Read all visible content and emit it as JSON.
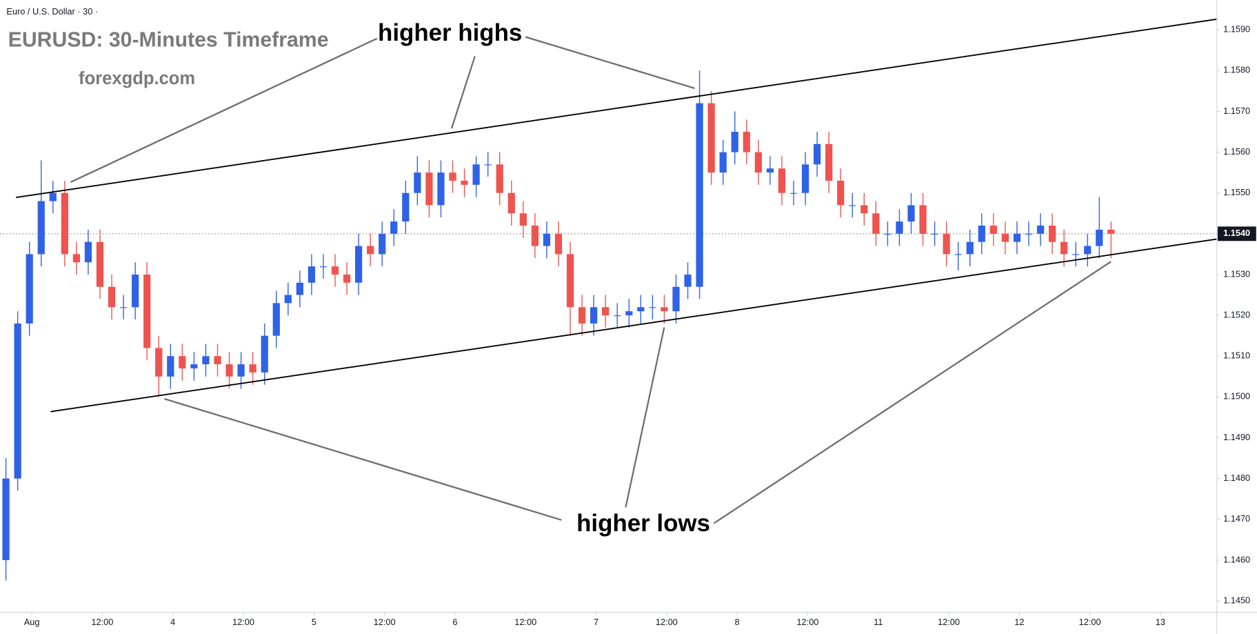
{
  "chart_data": {
    "type": "candlestick",
    "symbol": "Euro / U.S. Dollar · 30 ·",
    "title": "EURUSD: 30-Minutes Timeframe",
    "subtitle": "forexgdp.com",
    "annotations": [
      "higher highs",
      "higher lows"
    ],
    "up_color": "#2f62e6",
    "down_color": "#ef5350",
    "xlim": [
      -0.5,
      103
    ],
    "xticks": [
      {
        "value": 2.2,
        "label": "Aug"
      },
      {
        "value": 8.2,
        "label": "12:00"
      },
      {
        "value": 14.2,
        "label": "4"
      },
      {
        "value": 20.2,
        "label": "12:00"
      },
      {
        "value": 26.2,
        "label": "5"
      },
      {
        "value": 32.2,
        "label": "12:00"
      },
      {
        "value": 38.2,
        "label": "6"
      },
      {
        "value": 44.2,
        "label": "12:00"
      },
      {
        "value": 50.2,
        "label": "7"
      },
      {
        "value": 56.2,
        "label": "12:00"
      },
      {
        "value": 62.2,
        "label": "8"
      },
      {
        "value": 68.2,
        "label": "12:00"
      },
      {
        "value": 74.2,
        "label": "11"
      },
      {
        "value": 80.2,
        "label": "12:00"
      },
      {
        "value": 86.2,
        "label": "12"
      },
      {
        "value": 92.2,
        "label": "12:00"
      },
      {
        "value": 98.2,
        "label": "13"
      }
    ],
    "ylim": [
      1.14472,
      1.15973
    ],
    "yticks": [
      {
        "value": 1.145,
        "label": "1.1450"
      },
      {
        "value": 1.146,
        "label": "1.1460"
      },
      {
        "value": 1.147,
        "label": "1.1470"
      },
      {
        "value": 1.148,
        "label": "1.1480"
      },
      {
        "value": 1.149,
        "label": "1.1490"
      },
      {
        "value": 1.15,
        "label": "1.1500"
      },
      {
        "value": 1.151,
        "label": "1.1510"
      },
      {
        "value": 1.152,
        "label": "1.1520"
      },
      {
        "value": 1.153,
        "label": "1.1530"
      },
      {
        "value": 1.154,
        "label": "1.1540"
      },
      {
        "value": 1.155,
        "label": "1.1550"
      },
      {
        "value": 1.156,
        "label": "1.1560"
      },
      {
        "value": 1.157,
        "label": "1.1570"
      },
      {
        "value": 1.158,
        "label": "1.1580"
      },
      {
        "value": 1.159,
        "label": "1.1590"
      }
    ],
    "last_price": {
      "value": 1.154,
      "label": "1.1540"
    },
    "trendlines": [
      {
        "x": [
          0.86,
          103
        ],
        "y": [
          1.15489,
          1.15926
        ]
      },
      {
        "x": [
          3.8,
          103
        ],
        "y": [
          1.14964,
          1.15387
        ]
      }
    ],
    "open": [
      1.146,
      1.148,
      1.1518,
      1.1535,
      1.1548,
      1.155,
      1.1535,
      1.1533,
      1.1538,
      1.1527,
      1.1522,
      1.1522,
      1.153,
      1.1512,
      1.1505,
      1.151,
      1.1507,
      1.1508,
      1.151,
      1.1508,
      1.1505,
      1.1508,
      1.1506,
      1.1515,
      1.1523,
      1.1525,
      1.1528,
      1.1532,
      1.1532,
      1.153,
      1.1528,
      1.1537,
      1.1535,
      1.154,
      1.1543,
      1.155,
      1.1555,
      1.1547,
      1.1555,
      1.1553,
      1.1552,
      1.1557,
      1.1557,
      1.155,
      1.1545,
      1.1542,
      1.1537,
      1.154,
      1.1535,
      1.1522,
      1.1518,
      1.1522,
      1.152,
      1.152,
      1.1521,
      1.1522,
      1.1522,
      1.1521,
      1.1527,
      1.1527,
      1.1572,
      1.1555,
      1.156,
      1.1565,
      1.156,
      1.1555,
      1.1556,
      1.155,
      1.155,
      1.1557,
      1.1562,
      1.1553,
      1.1547,
      1.1547,
      1.1545,
      1.154,
      1.154,
      1.1543,
      1.1547,
      1.154,
      1.154,
      1.1535,
      1.1535,
      1.1538,
      1.1542,
      1.154,
      1.1538,
      1.154,
      1.154,
      1.1542,
      1.1538,
      1.1535,
      1.1535,
      1.1537,
      1.1541
    ],
    "high": [
      1.1485,
      1.1521,
      1.1538,
      1.1558,
      1.1553,
      1.1553,
      1.1538,
      1.1541,
      1.1541,
      1.153,
      1.1525,
      1.1533,
      1.1533,
      1.1515,
      1.1513,
      1.1513,
      1.1511,
      1.1513,
      1.1513,
      1.1511,
      1.1511,
      1.1511,
      1.1518,
      1.1526,
      1.1528,
      1.1531,
      1.1535,
      1.1535,
      1.1535,
      1.1533,
      1.154,
      1.154,
      1.1543,
      1.1546,
      1.1553,
      1.1559,
      1.1558,
      1.1558,
      1.1558,
      1.1556,
      1.1559,
      1.156,
      1.156,
      1.1553,
      1.1548,
      1.1545,
      1.1543,
      1.1543,
      1.1538,
      1.1525,
      1.1525,
      1.1525,
      1.1523,
      1.1524,
      1.1525,
      1.1525,
      1.1525,
      1.153,
      1.1533,
      1.158,
      1.1575,
      1.1563,
      1.157,
      1.1568,
      1.1563,
      1.1559,
      1.1559,
      1.1553,
      1.156,
      1.1565,
      1.1565,
      1.1556,
      1.155,
      1.155,
      1.1548,
      1.1543,
      1.1546,
      1.155,
      1.155,
      1.1543,
      1.1543,
      1.1538,
      1.1541,
      1.1545,
      1.1545,
      1.1543,
      1.1543,
      1.1543,
      1.1545,
      1.1545,
      1.1541,
      1.1538,
      1.154,
      1.1549,
      1.1543
    ],
    "low": [
      1.1455,
      1.1477,
      1.1515,
      1.1532,
      1.1545,
      1.1532,
      1.153,
      1.153,
      1.1524,
      1.1519,
      1.1519,
      1.1519,
      1.1509,
      1.15,
      1.1502,
      1.1504,
      1.1504,
      1.1505,
      1.1505,
      1.1502,
      1.1502,
      1.1503,
      1.1503,
      1.1512,
      1.152,
      1.1522,
      1.1525,
      1.1529,
      1.1527,
      1.1525,
      1.1525,
      1.1532,
      1.1532,
      1.1537,
      1.154,
      1.1547,
      1.1544,
      1.1544,
      1.155,
      1.1549,
      1.1549,
      1.1554,
      1.1547,
      1.1542,
      1.1539,
      1.1534,
      1.1534,
      1.1532,
      1.1515,
      1.1515,
      1.1515,
      1.1517,
      1.1517,
      1.1517,
      1.1518,
      1.1519,
      1.1518,
      1.1518,
      1.1524,
      1.1524,
      1.1552,
      1.1552,
      1.1557,
      1.1557,
      1.1552,
      1.1552,
      1.1547,
      1.1547,
      1.1547,
      1.1554,
      1.155,
      1.1544,
      1.1544,
      1.1542,
      1.1537,
      1.1537,
      1.1537,
      1.154,
      1.1537,
      1.1537,
      1.1532,
      1.1531,
      1.1532,
      1.1535,
      1.1537,
      1.1535,
      1.1535,
      1.1537,
      1.1537,
      1.1535,
      1.1532,
      1.1532,
      1.1532,
      1.1534,
      1.1534
    ],
    "close": [
      1.148,
      1.1518,
      1.1535,
      1.1548,
      1.155,
      1.1535,
      1.1533,
      1.1538,
      1.1527,
      1.1522,
      1.1522,
      1.153,
      1.1512,
      1.1505,
      1.151,
      1.1507,
      1.1508,
      1.151,
      1.1508,
      1.1505,
      1.1508,
      1.1506,
      1.1515,
      1.1523,
      1.1525,
      1.1528,
      1.1532,
      1.1532,
      1.153,
      1.1528,
      1.1537,
      1.1535,
      1.154,
      1.1543,
      1.155,
      1.1555,
      1.1547,
      1.1555,
      1.1553,
      1.1552,
      1.1557,
      1.1557,
      1.155,
      1.1545,
      1.1542,
      1.1537,
      1.154,
      1.1535,
      1.1522,
      1.1518,
      1.1522,
      1.152,
      1.152,
      1.1521,
      1.1522,
      1.1522,
      1.1521,
      1.1527,
      1.153,
      1.1572,
      1.1555,
      1.156,
      1.1565,
      1.156,
      1.1555,
      1.1556,
      1.155,
      1.155,
      1.1557,
      1.1562,
      1.1553,
      1.1547,
      1.1547,
      1.1545,
      1.154,
      1.154,
      1.1543,
      1.1547,
      1.154,
      1.154,
      1.1535,
      1.1535,
      1.1538,
      1.1542,
      1.154,
      1.1538,
      1.154,
      1.154,
      1.1542,
      1.1538,
      1.1535,
      1.1535,
      1.1537,
      1.1541,
      1.154
    ]
  }
}
